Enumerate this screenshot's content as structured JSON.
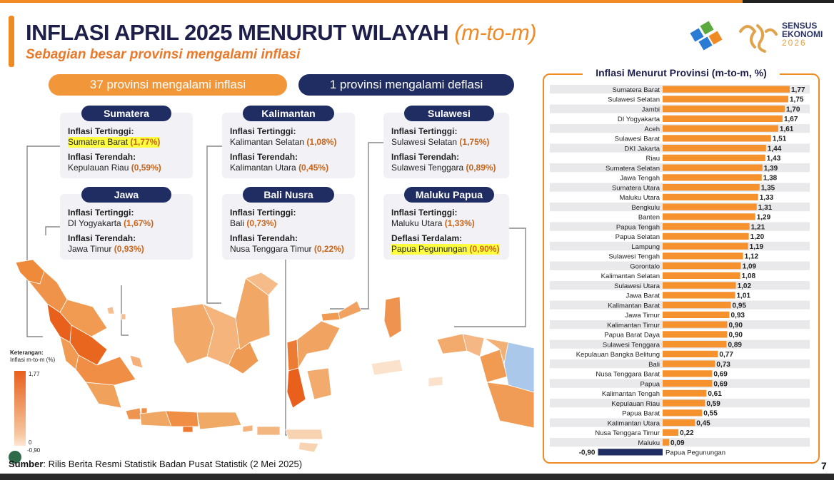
{
  "title": {
    "main": "INFLASI APRIL 2025 MENURUT WILAYAH",
    "highlight": "(m-to-m)"
  },
  "subtitle": "Sebagian besar provinsi mengalami inflasi",
  "logo": {
    "line1": "SENSUS",
    "line2": "EKONOMI",
    "line3": "2026"
  },
  "pills": {
    "inflation": "37 provinsi mengalami inflasi",
    "deflation": "1 provinsi mengalami deflasi"
  },
  "regions": [
    {
      "name": "Sumatera",
      "high_label": "Inflasi Tertinggi:",
      "high_prov": "Sumatera Barat",
      "high_val": "(1,77%)",
      "high_hl": true,
      "low_label": "Inflasi Terendah:",
      "low_prov": "Kepulauan Riau",
      "low_val": "(0,59%)",
      "low_hl": false
    },
    {
      "name": "Kalimantan",
      "high_label": "Inflasi Tertinggi:",
      "high_prov": "Kalimantan Selatan",
      "high_val": "(1,08%)",
      "high_hl": false,
      "low_label": "Inflasi Terendah:",
      "low_prov": "Kalimantan Utara",
      "low_val": "(0,45%)",
      "low_hl": false
    },
    {
      "name": "Sulawesi",
      "high_label": "Inflasi Tertinggi:",
      "high_prov": "Sulawesi Selatan",
      "high_val": "(1,75%)",
      "high_hl": false,
      "low_label": "Inflasi Terendah:",
      "low_prov": "Sulawesi Tenggara",
      "low_val": "(0,89%)",
      "low_hl": false
    },
    {
      "name": "Jawa",
      "high_label": "Inflasi Tertinggi:",
      "high_prov": "DI Yogyakarta",
      "high_val": "(1,67%)",
      "high_hl": false,
      "low_label": "Inflasi Terendah:",
      "low_prov": "Jawa Timur",
      "low_val": "(0,93%)",
      "low_hl": false
    },
    {
      "name": "Bali Nusra",
      "high_label": "Inflasi Tertinggi:",
      "high_prov": "Bali",
      "high_val": "(0,73%)",
      "high_hl": false,
      "low_label": "Inflasi Terendah:",
      "low_prov": "Nusa Tenggara Timur",
      "low_val": "(0,22%)",
      "low_hl": false
    },
    {
      "name": "Maluku Papua",
      "high_label": "Inflasi Tertinggi:",
      "high_prov": "Maluku Utara",
      "high_val": "(1,33%)",
      "high_hl": false,
      "low_label": "Deflasi Terdalam:",
      "low_prov": "Papua Pegunungan",
      "low_val": "(0,90%)",
      "low_hl": true
    }
  ],
  "legend": {
    "title": "Keterangan:",
    "subtitle": "Inflasi m-to-m (%)",
    "max": "1,77",
    "zero": "0",
    "min": "-0,90"
  },
  "source": {
    "label": "Sumber",
    "text": ": Rilis Berita Resmi Statistik Badan Pusat Statistik (2 Mei 2025)"
  },
  "page_number": "7",
  "colors": {
    "orange": "#f08a24",
    "bar": "#f5922e",
    "navy": "#1f2d63",
    "negative_bar": "#1f2d63"
  },
  "chart_data": {
    "type": "bar",
    "orientation": "horizontal",
    "title": "Inflasi Menurut Provinsi (m-to-m, %)",
    "categories": [
      "Sumatera Barat",
      "Sulawesi Selatan",
      "Jambi",
      "DI Yogyakarta",
      "Aceh",
      "Sulawesi Barat",
      "DKI Jakarta",
      "Riau",
      "Sumatera Selatan",
      "Jawa Tengah",
      "Sumatera Utara",
      "Maluku Utara",
      "Bengkulu",
      "Banten",
      "Papua Tengah",
      "Papua Selatan",
      "Lampung",
      "Sulawesi Tengah",
      "Gorontalo",
      "Kalimantan Selatan",
      "Sulawesi Utara",
      "Jawa Barat",
      "Kalimantan Barat",
      "Jawa Timur",
      "Kalimantan Timur",
      "Papua Barat Daya",
      "Sulawesi Tenggara",
      "Kepulauan Bangka Belitung",
      "Bali",
      "Nusa Tenggara Barat",
      "Papua",
      "Kalimantan Tengah",
      "Kepulauan Riau",
      "Papua Barat",
      "Kalimantan Utara",
      "Nusa Tenggara Timur",
      "Maluku",
      "Papua Pegunungan"
    ],
    "values": [
      1.77,
      1.75,
      1.7,
      1.67,
      1.61,
      1.51,
      1.44,
      1.43,
      1.39,
      1.38,
      1.35,
      1.33,
      1.31,
      1.29,
      1.21,
      1.2,
      1.19,
      1.12,
      1.09,
      1.08,
      1.02,
      1.01,
      0.95,
      0.93,
      0.9,
      0.9,
      0.89,
      0.77,
      0.73,
      0.69,
      0.69,
      0.61,
      0.59,
      0.55,
      0.45,
      0.22,
      0.09,
      -0.9
    ],
    "labels": [
      "1,77",
      "1,75",
      "1,70",
      "1,67",
      "1,61",
      "1,51",
      "1,44",
      "1,43",
      "1,39",
      "1,38",
      "1,35",
      "1,33",
      "1,31",
      "1,29",
      "1,21",
      "1,20",
      "1,19",
      "1,12",
      "1,09",
      "1,08",
      "1,02",
      "1,01",
      "0,95",
      "0,93",
      "0,90",
      "0,90",
      "0,89",
      "0,77",
      "0,73",
      "0,69",
      "0,69",
      "0,61",
      "0,59",
      "0,55",
      "0,45",
      "0,22",
      "0,09",
      "-0,90"
    ],
    "xlim": [
      -0.9,
      1.77
    ]
  }
}
